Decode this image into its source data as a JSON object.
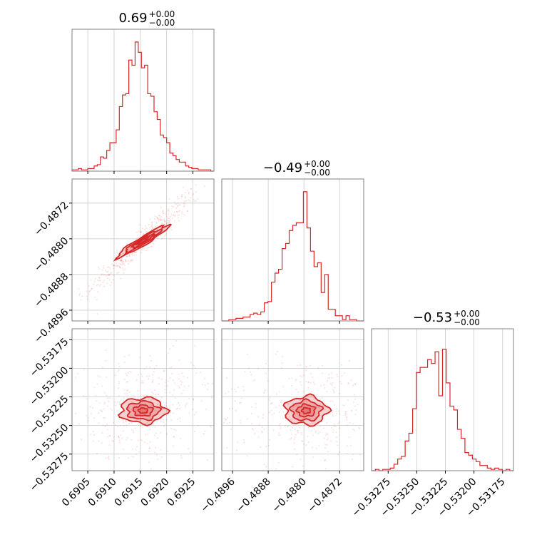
{
  "chart_data": {
    "type": "corner",
    "color": "#d62728",
    "params": [
      {
        "title_value": "0.69",
        "title_plus": "+0.00",
        "title_minus": "−0.00",
        "range": [
          0.6902,
          0.6929
        ],
        "ticks": [
          0.6905,
          0.691,
          0.6915,
          0.692,
          0.6925
        ],
        "tick_labels": [
          "0.6905",
          "0.6910",
          "0.6915",
          "0.6920",
          "0.6925"
        ],
        "hist_levels": [
          0.01,
          0.01,
          0.02,
          0.01,
          0.01,
          0.02,
          0.02,
          0.04,
          0.05,
          0.11,
          0.1,
          0.16,
          0.22,
          0.22,
          0.32,
          0.5,
          0.59,
          0.6,
          0.86,
          0.82,
          1.0,
          0.92,
          0.8,
          0.82,
          0.6,
          0.58,
          0.46,
          0.4,
          0.28,
          0.26,
          0.22,
          0.14,
          0.12,
          0.09,
          0.07,
          0.07,
          0.04,
          0.03,
          0.02,
          0.02,
          0.01,
          0.01,
          0.01,
          0.01,
          0.0
        ]
      },
      {
        "title_value": "−0.49",
        "title_plus": "+0.00",
        "title_minus": "−0.00",
        "range": [
          -0.48984,
          -0.48666
        ],
        "ticks": [
          -0.4896,
          -0.4888,
          -0.488,
          -0.4872
        ],
        "tick_labels": [
          "−0.4896",
          "−0.4888",
          "−0.4880",
          "−0.4872"
        ],
        "hist_levels": [
          0.0,
          0.0,
          0.01,
          0.01,
          0.02,
          0.02,
          0.03,
          0.03,
          0.05,
          0.06,
          0.05,
          0.07,
          0.14,
          0.15,
          0.3,
          0.37,
          0.4,
          0.56,
          0.6,
          0.7,
          0.74,
          0.76,
          0.76,
          1.0,
          0.72,
          0.54,
          0.42,
          0.45,
          0.22,
          0.36,
          0.09,
          0.09,
          0.04,
          0.04,
          0.01,
          0.04,
          0.01,
          0.01,
          0.0,
          0.0
        ]
      },
      {
        "title_value": "−0.53",
        "title_plus": "+0.00",
        "title_minus": "−0.00",
        "range": [
          -0.532895,
          -0.531655
        ],
        "ticks": [
          -0.53275,
          -0.5325,
          -0.53225,
          -0.532,
          -0.53175
        ],
        "tick_labels": [
          "−0.53275",
          "−0.53250",
          "−0.53225",
          "−0.53200",
          "−0.53175"
        ],
        "hist_levels": [
          0.0,
          0.01,
          0.0,
          0.01,
          0.01,
          0.02,
          0.05,
          0.09,
          0.11,
          0.23,
          0.29,
          0.48,
          0.76,
          0.8,
          0.8,
          0.86,
          0.83,
          0.92,
          0.58,
          0.94,
          0.68,
          0.5,
          0.47,
          0.32,
          0.25,
          0.14,
          0.12,
          0.09,
          0.07,
          0.04,
          0.04,
          0.02,
          0.01,
          0.02,
          0.01,
          0.0,
          0.01,
          0.0
        ]
      }
    ]
  }
}
